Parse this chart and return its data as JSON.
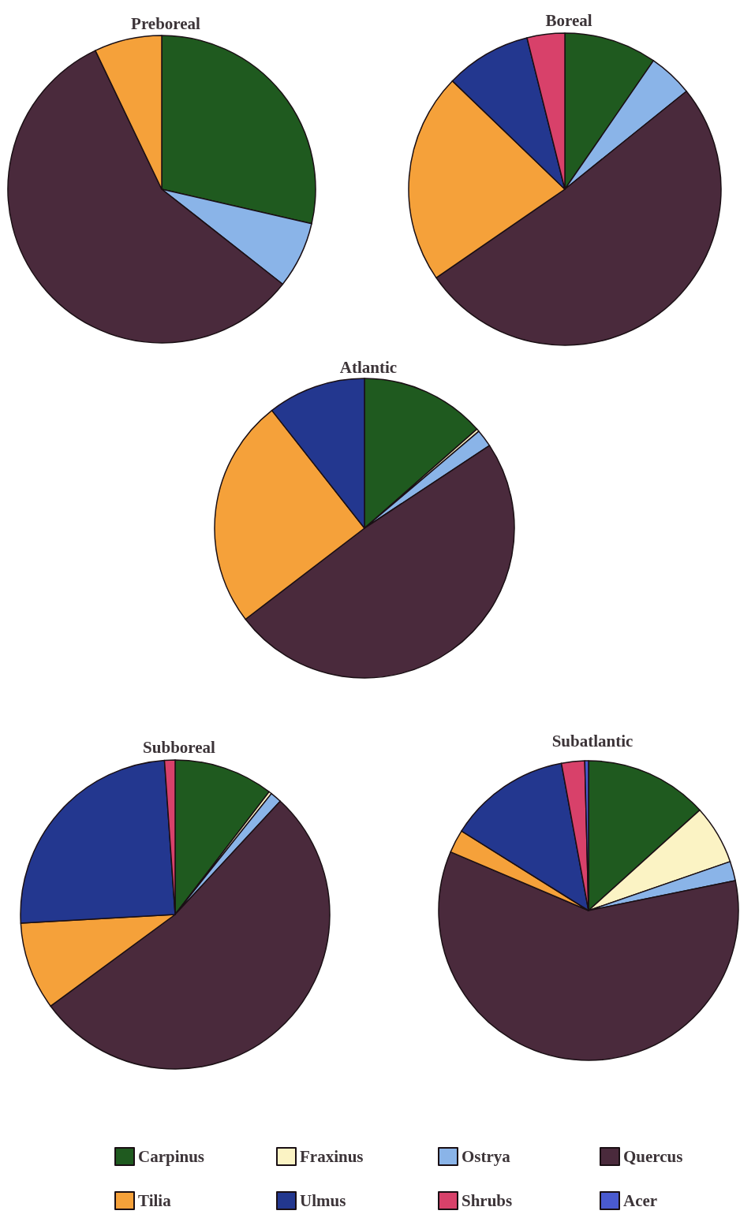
{
  "chart_data": {
    "type": "pie",
    "categories": [
      "Carpinus",
      "Fraxinus",
      "Ostrya",
      "Quercus",
      "Tilia",
      "Ulmus",
      "Shrubs",
      "Acer"
    ],
    "colors": [
      "#1f5a1f",
      "#fbf3c4",
      "#8ab4e8",
      "#4a2a3c",
      "#f5a13a",
      "#23378f",
      "#d8416a",
      "#4a5ad0"
    ],
    "legend": "bottom",
    "series": [
      {
        "name": "Preboreal",
        "values": [
          28.6,
          null,
          7,
          57.3,
          7.1,
          null,
          null,
          null
        ]
      },
      {
        "name": "Boreal",
        "values": [
          9.6,
          null,
          4.6,
          51.2,
          21.8,
          8.9,
          3.9,
          null
        ]
      },
      {
        "name": "Atlantic",
        "values": [
          13.5,
          0.3,
          1.9,
          48.9,
          24.8,
          10.6,
          null,
          null
        ]
      },
      {
        "name": "Subboreal",
        "values": [
          10.4,
          0.3,
          1.2,
          53,
          9.2,
          24.8,
          1.1,
          null
        ]
      },
      {
        "name": "Subatlantic",
        "values": [
          13.3,
          6.4,
          2.1,
          59.6,
          2.5,
          13.2,
          2.5,
          0.4
        ]
      }
    ]
  }
}
